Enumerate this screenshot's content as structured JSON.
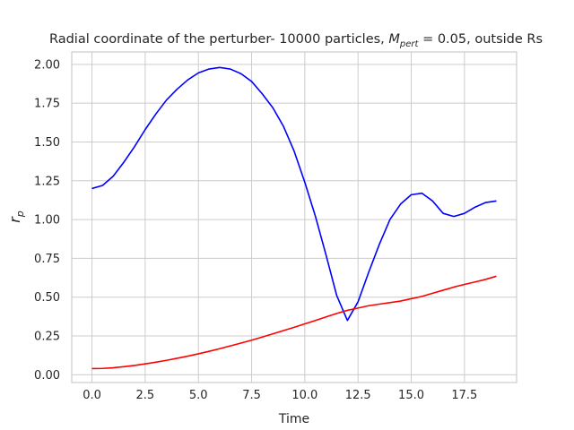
{
  "chart_data": {
    "type": "line",
    "title": "Radial coordinate of the perturber- 10000 particles, M_pert = 0.05, outside Rs",
    "title_parts": {
      "prefix": "Radial coordinate of the perturber- 10000 particles, ",
      "math_main": "M",
      "math_sub": "pert",
      "suffix": " = 0.05, outside Rs"
    },
    "xlabel": "Time",
    "ylabel": "r_p",
    "ylabel_parts": {
      "main": "r",
      "sub": "p"
    },
    "xlim": [
      -0.95,
      19.95
    ],
    "ylim": [
      -0.05,
      2.08
    ],
    "xticks": [
      0.0,
      2.5,
      5.0,
      7.5,
      10.0,
      12.5,
      15.0,
      17.5
    ],
    "xtick_labels": [
      "0.0",
      "2.5",
      "5.0",
      "7.5",
      "10.0",
      "12.5",
      "15.0",
      "17.5"
    ],
    "yticks": [
      0.0,
      0.25,
      0.5,
      0.75,
      1.0,
      1.25,
      1.5,
      1.75,
      2.0
    ],
    "ytick_labels": [
      "0.00",
      "0.25",
      "0.50",
      "0.75",
      "1.00",
      "1.25",
      "1.50",
      "1.75",
      "2.00"
    ],
    "grid": true,
    "series": [
      {
        "color": "#0000ff",
        "x": [
          0,
          0.5,
          1,
          1.5,
          2,
          2.5,
          3,
          3.5,
          4,
          4.5,
          5,
          5.5,
          6,
          6.5,
          7,
          7.5,
          8,
          8.5,
          9,
          9.5,
          10,
          10.5,
          11,
          11.5,
          12,
          12.5,
          13,
          13.5,
          14,
          14.5,
          15,
          15.5,
          16,
          16.5,
          17,
          17.5,
          18,
          18.5,
          19
        ],
        "values": [
          1.2,
          1.22,
          1.28,
          1.37,
          1.47,
          1.58,
          1.68,
          1.77,
          1.84,
          1.9,
          1.945,
          1.97,
          1.98,
          1.97,
          1.94,
          1.89,
          1.81,
          1.72,
          1.6,
          1.44,
          1.24,
          1.02,
          0.77,
          0.51,
          0.35,
          0.47,
          0.66,
          0.84,
          1.0,
          1.1,
          1.16,
          1.17,
          1.12,
          1.04,
          1.02,
          1.04,
          1.08,
          1.11,
          1.12
        ]
      },
      {
        "color": "#ff0000",
        "x": [
          0,
          0.5,
          1,
          1.5,
          2,
          2.5,
          3,
          3.5,
          4,
          4.5,
          5,
          5.5,
          6,
          6.5,
          7,
          7.5,
          8,
          8.5,
          9,
          9.5,
          10,
          10.5,
          11,
          11.5,
          12,
          12.5,
          13,
          13.5,
          14,
          14.5,
          15,
          15.5,
          16,
          16.5,
          17,
          17.5,
          18,
          18.5,
          19
        ],
        "values": [
          0.04,
          0.041,
          0.045,
          0.052,
          0.06,
          0.07,
          0.081,
          0.093,
          0.106,
          0.12,
          0.135,
          0.151,
          0.168,
          0.186,
          0.204,
          0.223,
          0.243,
          0.264,
          0.285,
          0.306,
          0.328,
          0.35,
          0.373,
          0.395,
          0.415,
          0.43,
          0.445,
          0.455,
          0.465,
          0.475,
          0.49,
          0.505,
          0.525,
          0.545,
          0.565,
          0.582,
          0.598,
          0.615,
          0.635
        ]
      }
    ]
  }
}
